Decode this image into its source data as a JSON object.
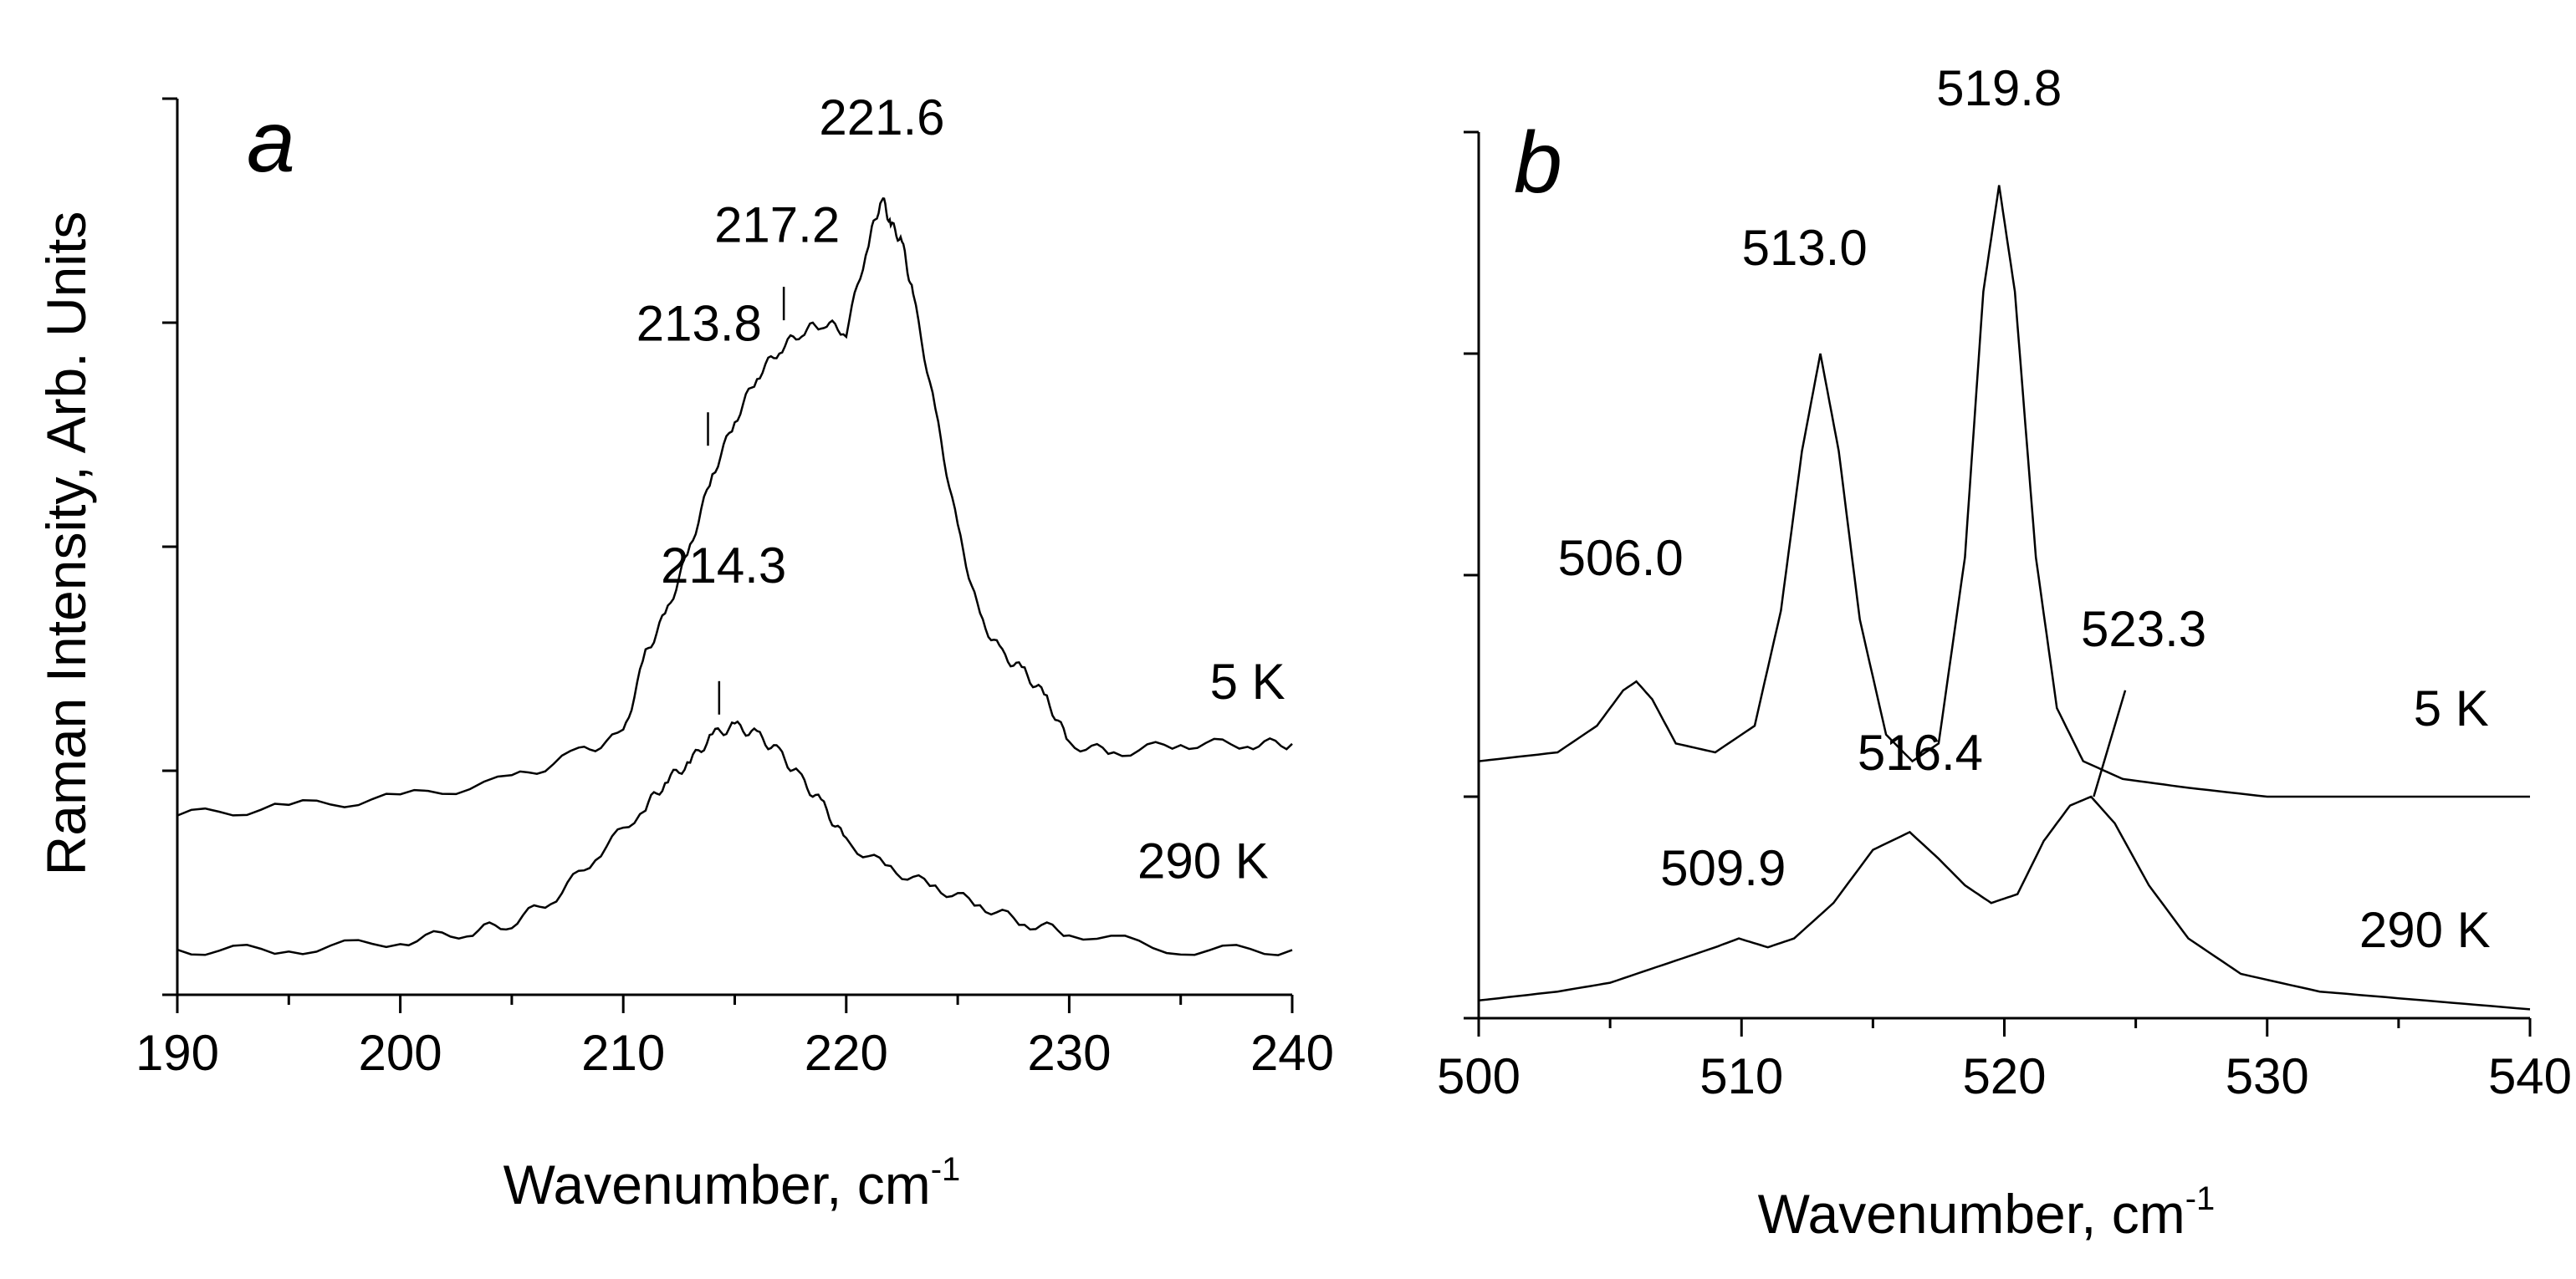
{
  "chart_data": [
    {
      "type": "line",
      "panel_label": "a",
      "xlabel": "Wavenumber, cm",
      "xlabel_superscript": "-1",
      "ylabel": "Raman Intensity, Arb. Units",
      "xlim": [
        190,
        240
      ],
      "ylim": [
        0,
        1
      ],
      "x_ticks": [
        "190",
        "200",
        "210",
        "220",
        "230",
        "240"
      ],
      "grid": false,
      "series": [
        {
          "name": "5 K",
          "x": [
            190,
            195,
            200,
            205,
            208,
            210,
            211,
            212,
            213,
            214,
            215,
            216,
            217,
            218,
            219,
            220,
            221,
            221.6,
            222,
            222.5,
            223,
            224,
            225,
            226,
            227,
            228,
            229,
            230,
            232,
            235,
            238,
            240
          ],
          "y": [
            0.2,
            0.21,
            0.22,
            0.24,
            0.27,
            0.29,
            0.38,
            0.43,
            0.5,
            0.58,
            0.64,
            0.69,
            0.72,
            0.74,
            0.75,
            0.74,
            0.84,
            0.89,
            0.86,
            0.84,
            0.78,
            0.65,
            0.52,
            0.42,
            0.38,
            0.36,
            0.33,
            0.28,
            0.27,
            0.28,
            0.28,
            0.28
          ]
        },
        {
          "name": "290 K",
          "x": [
            190,
            195,
            200,
            203,
            205,
            207,
            209,
            211,
            212,
            213,
            214,
            215,
            216,
            217,
            218,
            219,
            220,
            222,
            224,
            226,
            228,
            230,
            235,
            240
          ],
          "y": [
            0.05,
            0.05,
            0.06,
            0.07,
            0.08,
            0.11,
            0.16,
            0.21,
            0.24,
            0.26,
            0.29,
            0.3,
            0.29,
            0.27,
            0.24,
            0.21,
            0.17,
            0.14,
            0.12,
            0.1,
            0.08,
            0.07,
            0.05,
            0.05
          ]
        }
      ],
      "series_labels": [
        {
          "text": "5 K",
          "x": 238,
          "y": 0.33
        },
        {
          "text": "290 K",
          "x": 236,
          "y": 0.13
        }
      ],
      "annotations": [
        {
          "text": "221.6",
          "x": 221.6,
          "y": 0.96,
          "marker_x": null
        },
        {
          "text": "217.2",
          "x": 216.9,
          "y": 0.84,
          "marker_x": 217.2,
          "marker_y": 0.79
        },
        {
          "text": "213.8",
          "x": 213.4,
          "y": 0.73,
          "marker_x": 213.8,
          "marker_y": 0.65
        },
        {
          "text": "214.3",
          "x": 214.5,
          "y": 0.46,
          "marker_x": 214.3,
          "marker_y": 0.35
        }
      ]
    },
    {
      "type": "line",
      "panel_label": "b",
      "xlabel": "Wavenumber, cm",
      "xlabel_superscript": "-1",
      "ylabel": "",
      "xlim": [
        500,
        540
      ],
      "ylim": [
        0,
        1
      ],
      "x_ticks": [
        "500",
        "510",
        "520",
        "530",
        "540"
      ],
      "grid": false,
      "series": [
        {
          "name": "5 K",
          "x": [
            500,
            503,
            504.5,
            505.5,
            506,
            506.6,
            507.5,
            509,
            510.5,
            511.5,
            512.3,
            513,
            513.7,
            514.5,
            515.5,
            516.5,
            517.5,
            518.5,
            519.2,
            519.8,
            520.4,
            521.2,
            522,
            523,
            524.5,
            527,
            530,
            535,
            540
          ],
          "y": [
            0.29,
            0.3,
            0.33,
            0.37,
            0.38,
            0.36,
            0.31,
            0.3,
            0.33,
            0.46,
            0.64,
            0.75,
            0.64,
            0.45,
            0.32,
            0.29,
            0.31,
            0.52,
            0.82,
            0.94,
            0.82,
            0.52,
            0.35,
            0.29,
            0.27,
            0.26,
            0.25,
            0.25,
            0.25
          ]
        },
        {
          "name": "290 K",
          "x": [
            500,
            503,
            505,
            507,
            509,
            509.9,
            511,
            512,
            513.5,
            515,
            516.4,
            517.5,
            518.5,
            519.5,
            520.5,
            521.5,
            522.5,
            523.3,
            524.2,
            525.5,
            527,
            529,
            532,
            536,
            540
          ],
          "y": [
            0.02,
            0.03,
            0.04,
            0.06,
            0.08,
            0.09,
            0.08,
            0.09,
            0.13,
            0.19,
            0.21,
            0.18,
            0.15,
            0.13,
            0.14,
            0.2,
            0.24,
            0.25,
            0.22,
            0.15,
            0.09,
            0.05,
            0.03,
            0.02,
            0.01
          ]
        }
      ],
      "series_labels": [
        {
          "text": "5 K",
          "x": 537,
          "y": 0.33
        },
        {
          "text": "290 K",
          "x": 536,
          "y": 0.08
        }
      ],
      "annotations": [
        {
          "text": "519.8",
          "x": 519.8,
          "y": 1.03,
          "marker_x": null
        },
        {
          "text": "513.0",
          "x": 512.4,
          "y": 0.85,
          "marker_x": null
        },
        {
          "text": "506.0",
          "x": 505.4,
          "y": 0.5,
          "marker_x": null
        },
        {
          "text": "523.3",
          "x": 525.3,
          "y": 0.42,
          "marker_x": 524.6,
          "marker_y": 0.37,
          "marker_x2": 523.4,
          "marker_y2": 0.25
        },
        {
          "text": "516.4",
          "x": 516.8,
          "y": 0.28,
          "marker_x": null
        },
        {
          "text": "509.9",
          "x": 509.3,
          "y": 0.15,
          "marker_x": null
        }
      ]
    }
  ]
}
